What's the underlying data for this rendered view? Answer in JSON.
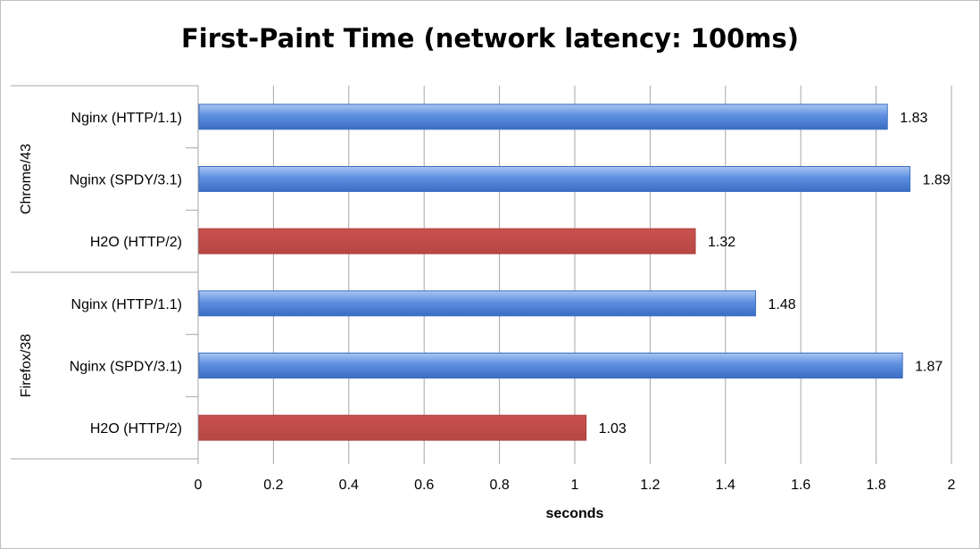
{
  "colors": {
    "http": "#4f81d6",
    "h2": "#c0504d",
    "grid": "#a6a6a6"
  },
  "chart_data": {
    "type": "bar",
    "orientation": "horizontal",
    "title": "First-Paint Time (network latency: 100ms)",
    "xlabel": "seconds",
    "xlim": [
      0,
      2
    ],
    "xticks": [
      "0",
      "0.2",
      "0.4",
      "0.6",
      "0.8",
      "1",
      "1.2",
      "1.4",
      "1.6",
      "1.8",
      "2"
    ],
    "grid": true,
    "groups": [
      {
        "name": "Chrome/43",
        "bars": [
          {
            "label": "Nginx (HTTP/1.1)",
            "value": 1.83,
            "value_label": "1.83",
            "kind": "http"
          },
          {
            "label": "Nginx (SPDY/3.1)",
            "value": 1.89,
            "value_label": "1.89",
            "kind": "http"
          },
          {
            "label": "H2O (HTTP/2)",
            "value": 1.32,
            "value_label": "1.32",
            "kind": "h2"
          }
        ]
      },
      {
        "name": "Firefox/38",
        "bars": [
          {
            "label": "Nginx (HTTP/1.1)",
            "value": 1.48,
            "value_label": "1.48",
            "kind": "http"
          },
          {
            "label": "Nginx (SPDY/3.1)",
            "value": 1.87,
            "value_label": "1.87",
            "kind": "http"
          },
          {
            "label": "H2O (HTTP/2)",
            "value": 1.03,
            "value_label": "1.03",
            "kind": "h2"
          }
        ]
      }
    ]
  }
}
